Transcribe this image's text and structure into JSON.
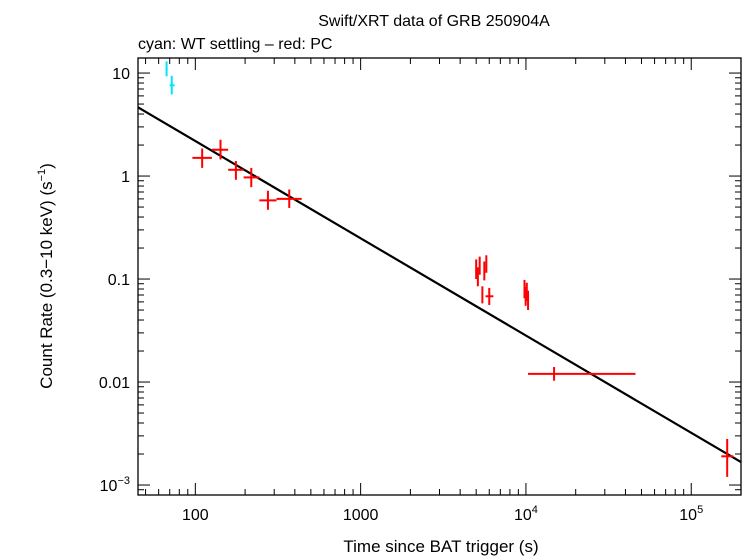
{
  "chart_data": {
    "type": "scatter",
    "title": "Swift/XRT data of GRB 250904A",
    "subtitle": "cyan: WT settling – red: PC",
    "xlabel": "Time since BAT trigger (s)",
    "ylabel": "Count Rate (0.3−10 keV) (s",
    "ylabel_sup": "−1",
    "ylabel_close": ")",
    "x_scale": "log",
    "y_scale": "log",
    "xlim": [
      45,
      200000
    ],
    "ylim": [
      0.0008,
      14
    ],
    "x_ticks": [
      {
        "value": 100,
        "base": "100",
        "sup": ""
      },
      {
        "value": 1000,
        "base": "1000",
        "sup": ""
      },
      {
        "value": 10000,
        "base": "10",
        "sup": "4"
      },
      {
        "value": 100000,
        "base": "10",
        "sup": "5"
      }
    ],
    "y_ticks": [
      {
        "value": 10,
        "base": "10",
        "sup": ""
      },
      {
        "value": 1,
        "base": "1",
        "sup": ""
      },
      {
        "value": 0.1,
        "base": "0.1",
        "sup": ""
      },
      {
        "value": 0.01,
        "base": "0.01",
        "sup": ""
      },
      {
        "value": 0.001,
        "base": "10",
        "sup": "−3"
      }
    ],
    "series": [
      {
        "name": "WT settling",
        "color": "#00e5ff",
        "points": [
          {
            "x": 67,
            "xlo": 66,
            "xhi": 68,
            "y": 11,
            "ylo": 9.3,
            "yhi": 13
          },
          {
            "x": 72,
            "xlo": 70,
            "xhi": 75,
            "y": 7.6,
            "ylo": 6.2,
            "yhi": 9.4
          }
        ]
      },
      {
        "name": "PC",
        "color": "#ff0000",
        "points": [
          {
            "x": 110,
            "xlo": 96,
            "xhi": 126,
            "y": 1.5,
            "ylo": 1.2,
            "yhi": 1.85
          },
          {
            "x": 142,
            "xlo": 126,
            "xhi": 158,
            "y": 1.8,
            "ylo": 1.45,
            "yhi": 2.25
          },
          {
            "x": 176,
            "xlo": 158,
            "xhi": 196,
            "y": 1.15,
            "ylo": 0.92,
            "yhi": 1.4
          },
          {
            "x": 218,
            "xlo": 196,
            "xhi": 244,
            "y": 0.97,
            "ylo": 0.78,
            "yhi": 1.2
          },
          {
            "x": 275,
            "xlo": 244,
            "xhi": 310,
            "y": 0.58,
            "ylo": 0.47,
            "yhi": 0.72
          },
          {
            "x": 370,
            "xlo": 310,
            "xhi": 440,
            "y": 0.6,
            "ylo": 0.49,
            "yhi": 0.74
          },
          {
            "x": 5000,
            "xlo": 4950,
            "xhi": 5050,
            "y": 0.125,
            "ylo": 0.1,
            "yhi": 0.155
          },
          {
            "x": 5120,
            "xlo": 5070,
            "xhi": 5170,
            "y": 0.105,
            "ylo": 0.085,
            "yhi": 0.13
          },
          {
            "x": 5250,
            "xlo": 5200,
            "xhi": 5300,
            "y": 0.135,
            "ylo": 0.11,
            "yhi": 0.165
          },
          {
            "x": 5450,
            "xlo": 5400,
            "xhi": 5500,
            "y": 0.07,
            "ylo": 0.058,
            "yhi": 0.085
          },
          {
            "x": 5600,
            "xlo": 5550,
            "xhi": 5650,
            "y": 0.12,
            "ylo": 0.097,
            "yhi": 0.148
          },
          {
            "x": 5760,
            "xlo": 5710,
            "xhi": 5810,
            "y": 0.14,
            "ylo": 0.115,
            "yhi": 0.17
          },
          {
            "x": 6000,
            "xlo": 5700,
            "xhi": 6350,
            "y": 0.068,
            "ylo": 0.056,
            "yhi": 0.082
          },
          {
            "x": 9800,
            "xlo": 9750,
            "xhi": 9850,
            "y": 0.08,
            "ylo": 0.065,
            "yhi": 0.098
          },
          {
            "x": 9960,
            "xlo": 9910,
            "xhi": 10010,
            "y": 0.068,
            "ylo": 0.055,
            "yhi": 0.084
          },
          {
            "x": 10120,
            "xlo": 10070,
            "xhi": 10170,
            "y": 0.075,
            "ylo": 0.061,
            "yhi": 0.092
          },
          {
            "x": 10300,
            "xlo": 10250,
            "xhi": 10350,
            "y": 0.062,
            "ylo": 0.05,
            "yhi": 0.077
          },
          {
            "x": 14800,
            "xlo": 10300,
            "xhi": 46000,
            "y": 0.012,
            "ylo": 0.0103,
            "yhi": 0.014
          },
          {
            "x": 165000,
            "xlo": 152000,
            "xhi": 180000,
            "y": 0.0019,
            "ylo": 0.0012,
            "yhi": 0.0028
          }
        ]
      }
    ],
    "model": {
      "name": "power-law fit",
      "color": "#000000",
      "points": [
        {
          "x": 45,
          "y": 4.65
        },
        {
          "x": 200000,
          "y": 0.00167
        }
      ]
    }
  }
}
